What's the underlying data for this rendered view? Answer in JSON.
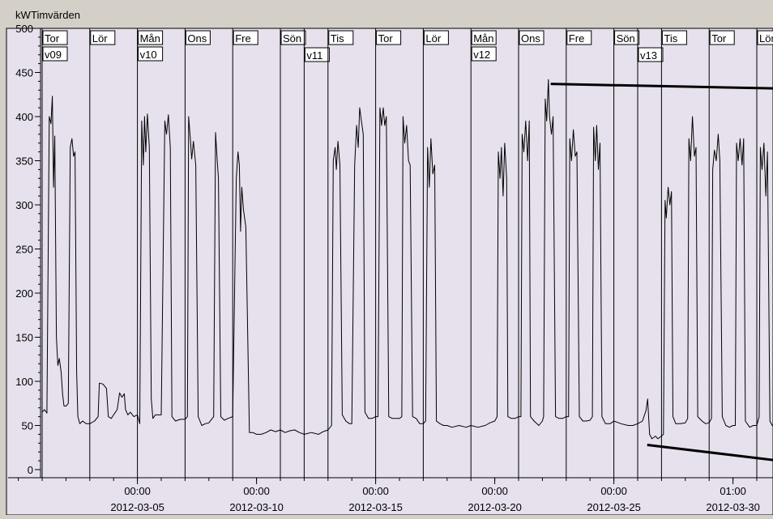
{
  "chart_data": {
    "type": "line",
    "unit_label": "kW",
    "title": "Timvärden",
    "ylim": [
      0,
      500
    ],
    "y_ticks": [
      0,
      50,
      100,
      150,
      200,
      250,
      300,
      350,
      400,
      450,
      500
    ],
    "x_start": "2012-03-01",
    "x_end": "2012-03-31",
    "x_tick_labels": [
      {
        "time": "00:00",
        "date": "2012-03-05"
      },
      {
        "time": "00:00",
        "date": "2012-03-10"
      },
      {
        "time": "00:00",
        "date": "2012-03-15"
      },
      {
        "time": "00:00",
        "date": "2012-03-20"
      },
      {
        "time": "00:00",
        "date": "2012-03-25"
      },
      {
        "time": "01:00",
        "date": "2012-03-30"
      }
    ],
    "day_markers": [
      {
        "date": "2012-03-01",
        "day": "Tor",
        "week": "v09"
      },
      {
        "date": "2012-03-03",
        "day": "Lör"
      },
      {
        "date": "2012-03-05",
        "day": "Mån",
        "week": "v10"
      },
      {
        "date": "2012-03-07",
        "day": "Ons"
      },
      {
        "date": "2012-03-09",
        "day": "Fre"
      },
      {
        "date": "2012-03-11",
        "day": "Sön"
      },
      {
        "date": "2012-03-12",
        "week": "v11"
      },
      {
        "date": "2012-03-13",
        "day": "Tis"
      },
      {
        "date": "2012-03-15",
        "day": "Tor"
      },
      {
        "date": "2012-03-17",
        "day": "Lör"
      },
      {
        "date": "2012-03-19",
        "day": "Mån",
        "week": "v12"
      },
      {
        "date": "2012-03-21",
        "day": "Ons"
      },
      {
        "date": "2012-03-23",
        "day": "Fre"
      },
      {
        "date": "2012-03-25",
        "day": "Sön"
      },
      {
        "date": "2012-03-26",
        "week": "v13"
      },
      {
        "date": "2012-03-27",
        "day": "Tis"
      },
      {
        "date": "2012-03-29",
        "day": "Tor"
      },
      {
        "date": "2012-03-31",
        "day": "Lör"
      }
    ],
    "series": [
      {
        "values": [
          [
            0.0,
            65
          ],
          [
            0.1,
            68
          ],
          [
            0.2,
            64
          ],
          [
            0.3,
            400
          ],
          [
            0.37,
            392
          ],
          [
            0.43,
            423
          ],
          [
            0.48,
            320
          ],
          [
            0.53,
            378
          ],
          [
            0.6,
            150
          ],
          [
            0.66,
            118
          ],
          [
            0.72,
            126
          ],
          [
            0.8,
            110
          ],
          [
            0.86,
            85
          ],
          [
            0.92,
            72
          ],
          [
            1.0,
            72
          ],
          [
            1.1,
            75
          ],
          [
            1.18,
            365
          ],
          [
            1.25,
            375
          ],
          [
            1.32,
            355
          ],
          [
            1.38,
            360
          ],
          [
            1.45,
            110
          ],
          [
            1.5,
            60
          ],
          [
            1.58,
            52
          ],
          [
            1.7,
            55
          ],
          [
            1.85,
            52
          ],
          [
            2.0,
            52
          ],
          [
            2.2,
            55
          ],
          [
            2.35,
            60
          ],
          [
            2.4,
            98
          ],
          [
            2.55,
            97
          ],
          [
            2.7,
            92
          ],
          [
            2.78,
            60
          ],
          [
            2.9,
            58
          ],
          [
            3.0,
            62
          ],
          [
            3.15,
            68
          ],
          [
            3.25,
            87
          ],
          [
            3.35,
            82
          ],
          [
            3.45,
            86
          ],
          [
            3.5,
            68
          ],
          [
            3.6,
            62
          ],
          [
            3.7,
            65
          ],
          [
            3.85,
            60
          ],
          [
            4.0,
            62
          ],
          [
            4.1,
            52
          ],
          [
            4.18,
            395
          ],
          [
            4.25,
            345
          ],
          [
            4.3,
            400
          ],
          [
            4.35,
            360
          ],
          [
            4.42,
            403
          ],
          [
            4.5,
            365
          ],
          [
            4.58,
            80
          ],
          [
            4.65,
            58
          ],
          [
            4.75,
            62
          ],
          [
            4.85,
            62
          ],
          [
            5.0,
            62
          ],
          [
            5.15,
            395
          ],
          [
            5.22,
            380
          ],
          [
            5.3,
            402
          ],
          [
            5.38,
            365
          ],
          [
            5.45,
            60
          ],
          [
            5.6,
            55
          ],
          [
            5.8,
            57
          ],
          [
            6.0,
            57
          ],
          [
            6.1,
            60
          ],
          [
            6.15,
            400
          ],
          [
            6.22,
            375
          ],
          [
            6.28,
            352
          ],
          [
            6.35,
            372
          ],
          [
            6.45,
            345
          ],
          [
            6.55,
            60
          ],
          [
            6.7,
            50
          ],
          [
            6.85,
            52
          ],
          [
            7.0,
            53
          ],
          [
            7.2,
            60
          ],
          [
            7.28,
            382
          ],
          [
            7.35,
            350
          ],
          [
            7.4,
            330
          ],
          [
            7.5,
            60
          ],
          [
            7.65,
            56
          ],
          [
            7.8,
            58
          ],
          [
            8.0,
            60
          ],
          [
            8.15,
            330
          ],
          [
            8.22,
            360
          ],
          [
            8.28,
            345
          ],
          [
            8.33,
            270
          ],
          [
            8.38,
            320
          ],
          [
            8.45,
            295
          ],
          [
            8.55,
            275
          ],
          [
            8.7,
            42
          ],
          [
            8.85,
            42
          ],
          [
            9.0,
            40
          ],
          [
            9.2,
            40
          ],
          [
            9.4,
            42
          ],
          [
            9.6,
            45
          ],
          [
            9.8,
            43
          ],
          [
            10.0,
            45
          ],
          [
            10.2,
            42
          ],
          [
            10.4,
            44
          ],
          [
            10.6,
            45
          ],
          [
            10.8,
            42
          ],
          [
            11.0,
            40
          ],
          [
            11.3,
            42
          ],
          [
            11.6,
            40
          ],
          [
            11.8,
            43
          ],
          [
            12.0,
            45
          ],
          [
            12.15,
            50
          ],
          [
            12.22,
            350
          ],
          [
            12.3,
            365
          ],
          [
            12.35,
            340
          ],
          [
            12.42,
            372
          ],
          [
            12.5,
            345
          ],
          [
            12.6,
            62
          ],
          [
            12.75,
            55
          ],
          [
            12.9,
            52
          ],
          [
            13.0,
            52
          ],
          [
            13.12,
            345
          ],
          [
            13.2,
            390
          ],
          [
            13.27,
            365
          ],
          [
            13.33,
            410
          ],
          [
            13.4,
            395
          ],
          [
            13.48,
            380
          ],
          [
            13.55,
            65
          ],
          [
            13.7,
            58
          ],
          [
            13.85,
            58
          ],
          [
            14.0,
            60
          ],
          [
            14.1,
            60
          ],
          [
            14.18,
            410
          ],
          [
            14.25,
            390
          ],
          [
            14.32,
            410
          ],
          [
            14.38,
            390
          ],
          [
            14.45,
            400
          ],
          [
            14.55,
            60
          ],
          [
            14.7,
            58
          ],
          [
            14.85,
            58
          ],
          [
            15.0,
            58
          ],
          [
            15.1,
            60
          ],
          [
            15.15,
            400
          ],
          [
            15.22,
            370
          ],
          [
            15.3,
            390
          ],
          [
            15.38,
            350
          ],
          [
            15.45,
            345
          ],
          [
            15.55,
            60
          ],
          [
            15.7,
            58
          ],
          [
            15.85,
            52
          ],
          [
            16.0,
            52
          ],
          [
            16.1,
            55
          ],
          [
            16.18,
            365
          ],
          [
            16.25,
            320
          ],
          [
            16.32,
            375
          ],
          [
            16.4,
            335
          ],
          [
            16.48,
            345
          ],
          [
            16.55,
            55
          ],
          [
            16.7,
            52
          ],
          [
            16.85,
            50
          ],
          [
            17.0,
            50
          ],
          [
            17.2,
            48
          ],
          [
            17.5,
            50
          ],
          [
            17.8,
            48
          ],
          [
            18.0,
            50
          ],
          [
            18.3,
            48
          ],
          [
            18.6,
            50
          ],
          [
            18.8,
            53
          ],
          [
            19.0,
            55
          ],
          [
            19.1,
            60
          ],
          [
            19.15,
            360
          ],
          [
            19.22,
            330
          ],
          [
            19.28,
            365
          ],
          [
            19.35,
            310
          ],
          [
            19.42,
            370
          ],
          [
            19.5,
            330
          ],
          [
            19.55,
            60
          ],
          [
            19.7,
            58
          ],
          [
            19.85,
            58
          ],
          [
            20.0,
            60
          ],
          [
            20.1,
            60
          ],
          [
            20.15,
            380
          ],
          [
            20.22,
            360
          ],
          [
            20.3,
            395
          ],
          [
            20.38,
            350
          ],
          [
            20.45,
            395
          ],
          [
            20.5,
            60
          ],
          [
            20.65,
            55
          ],
          [
            20.85,
            50
          ],
          [
            21.0,
            55
          ],
          [
            21.05,
            60
          ],
          [
            21.12,
            420
          ],
          [
            21.18,
            395
          ],
          [
            21.25,
            442
          ],
          [
            21.3,
            400
          ],
          [
            21.38,
            380
          ],
          [
            21.45,
            400
          ],
          [
            21.55,
            60
          ],
          [
            21.7,
            58
          ],
          [
            21.85,
            58
          ],
          [
            22.0,
            60
          ],
          [
            22.1,
            60
          ],
          [
            22.15,
            375
          ],
          [
            22.22,
            350
          ],
          [
            22.3,
            385
          ],
          [
            22.38,
            355
          ],
          [
            22.45,
            360
          ],
          [
            22.55,
            60
          ],
          [
            22.7,
            55
          ],
          [
            22.85,
            55
          ],
          [
            23.0,
            56
          ],
          [
            23.1,
            60
          ],
          [
            23.15,
            388
          ],
          [
            23.22,
            350
          ],
          [
            23.28,
            390
          ],
          [
            23.35,
            340
          ],
          [
            23.42,
            370
          ],
          [
            23.5,
            60
          ],
          [
            23.65,
            52
          ],
          [
            23.85,
            52
          ],
          [
            24.0,
            55
          ],
          [
            24.3,
            52
          ],
          [
            24.6,
            50
          ],
          [
            24.8,
            50
          ],
          [
            25.0,
            52
          ],
          [
            25.2,
            55
          ],
          [
            25.35,
            67
          ],
          [
            25.42,
            80
          ],
          [
            25.5,
            40
          ],
          [
            25.6,
            35
          ],
          [
            25.75,
            38
          ],
          [
            25.85,
            35
          ],
          [
            26.0,
            38
          ],
          [
            26.08,
            40
          ],
          [
            26.15,
            305
          ],
          [
            26.2,
            285
          ],
          [
            26.28,
            320
          ],
          [
            26.35,
            300
          ],
          [
            26.42,
            315
          ],
          [
            26.48,
            60
          ],
          [
            26.6,
            52
          ],
          [
            26.8,
            52
          ],
          [
            27.0,
            53
          ],
          [
            27.1,
            58
          ],
          [
            27.15,
            375
          ],
          [
            27.22,
            350
          ],
          [
            27.3,
            400
          ],
          [
            27.38,
            355
          ],
          [
            27.45,
            365
          ],
          [
            27.52,
            60
          ],
          [
            27.7,
            55
          ],
          [
            27.85,
            52
          ],
          [
            28.0,
            53
          ],
          [
            28.1,
            58
          ],
          [
            28.15,
            340
          ],
          [
            28.22,
            362
          ],
          [
            28.3,
            350
          ],
          [
            28.38,
            380
          ],
          [
            28.45,
            350
          ],
          [
            28.55,
            60
          ],
          [
            28.7,
            50
          ],
          [
            28.85,
            48
          ],
          [
            29.0,
            50
          ],
          [
            29.1,
            50
          ],
          [
            29.15,
            370
          ],
          [
            29.22,
            350
          ],
          [
            29.3,
            375
          ],
          [
            29.38,
            345
          ],
          [
            29.45,
            375
          ],
          [
            29.52,
            55
          ],
          [
            29.7,
            48
          ],
          [
            29.85,
            50
          ],
          [
            30.0,
            50
          ],
          [
            30.1,
            60
          ],
          [
            30.15,
            365
          ],
          [
            30.22,
            340
          ],
          [
            30.3,
            370
          ],
          [
            30.38,
            310
          ],
          [
            30.45,
            360
          ],
          [
            30.55,
            55
          ],
          [
            30.65,
            50
          ],
          [
            30.75,
            48
          ],
          [
            30.85,
            48
          ],
          [
            30.95,
            50
          ],
          [
            31.0,
            55
          ],
          [
            31.05,
            62
          ],
          [
            31.1,
            53
          ],
          [
            31.2,
            55
          ],
          [
            31.35,
            55
          ],
          [
            31.5,
            52
          ],
          [
            31.7,
            50
          ],
          [
            32.0,
            48
          ]
        ]
      }
    ],
    "trend_lines": [
      {
        "from": [
          21.35,
          437
        ],
        "to": [
          32.5,
          431
        ]
      },
      {
        "from": [
          25.4,
          28
        ],
        "to": [
          32.5,
          5
        ]
      }
    ]
  }
}
